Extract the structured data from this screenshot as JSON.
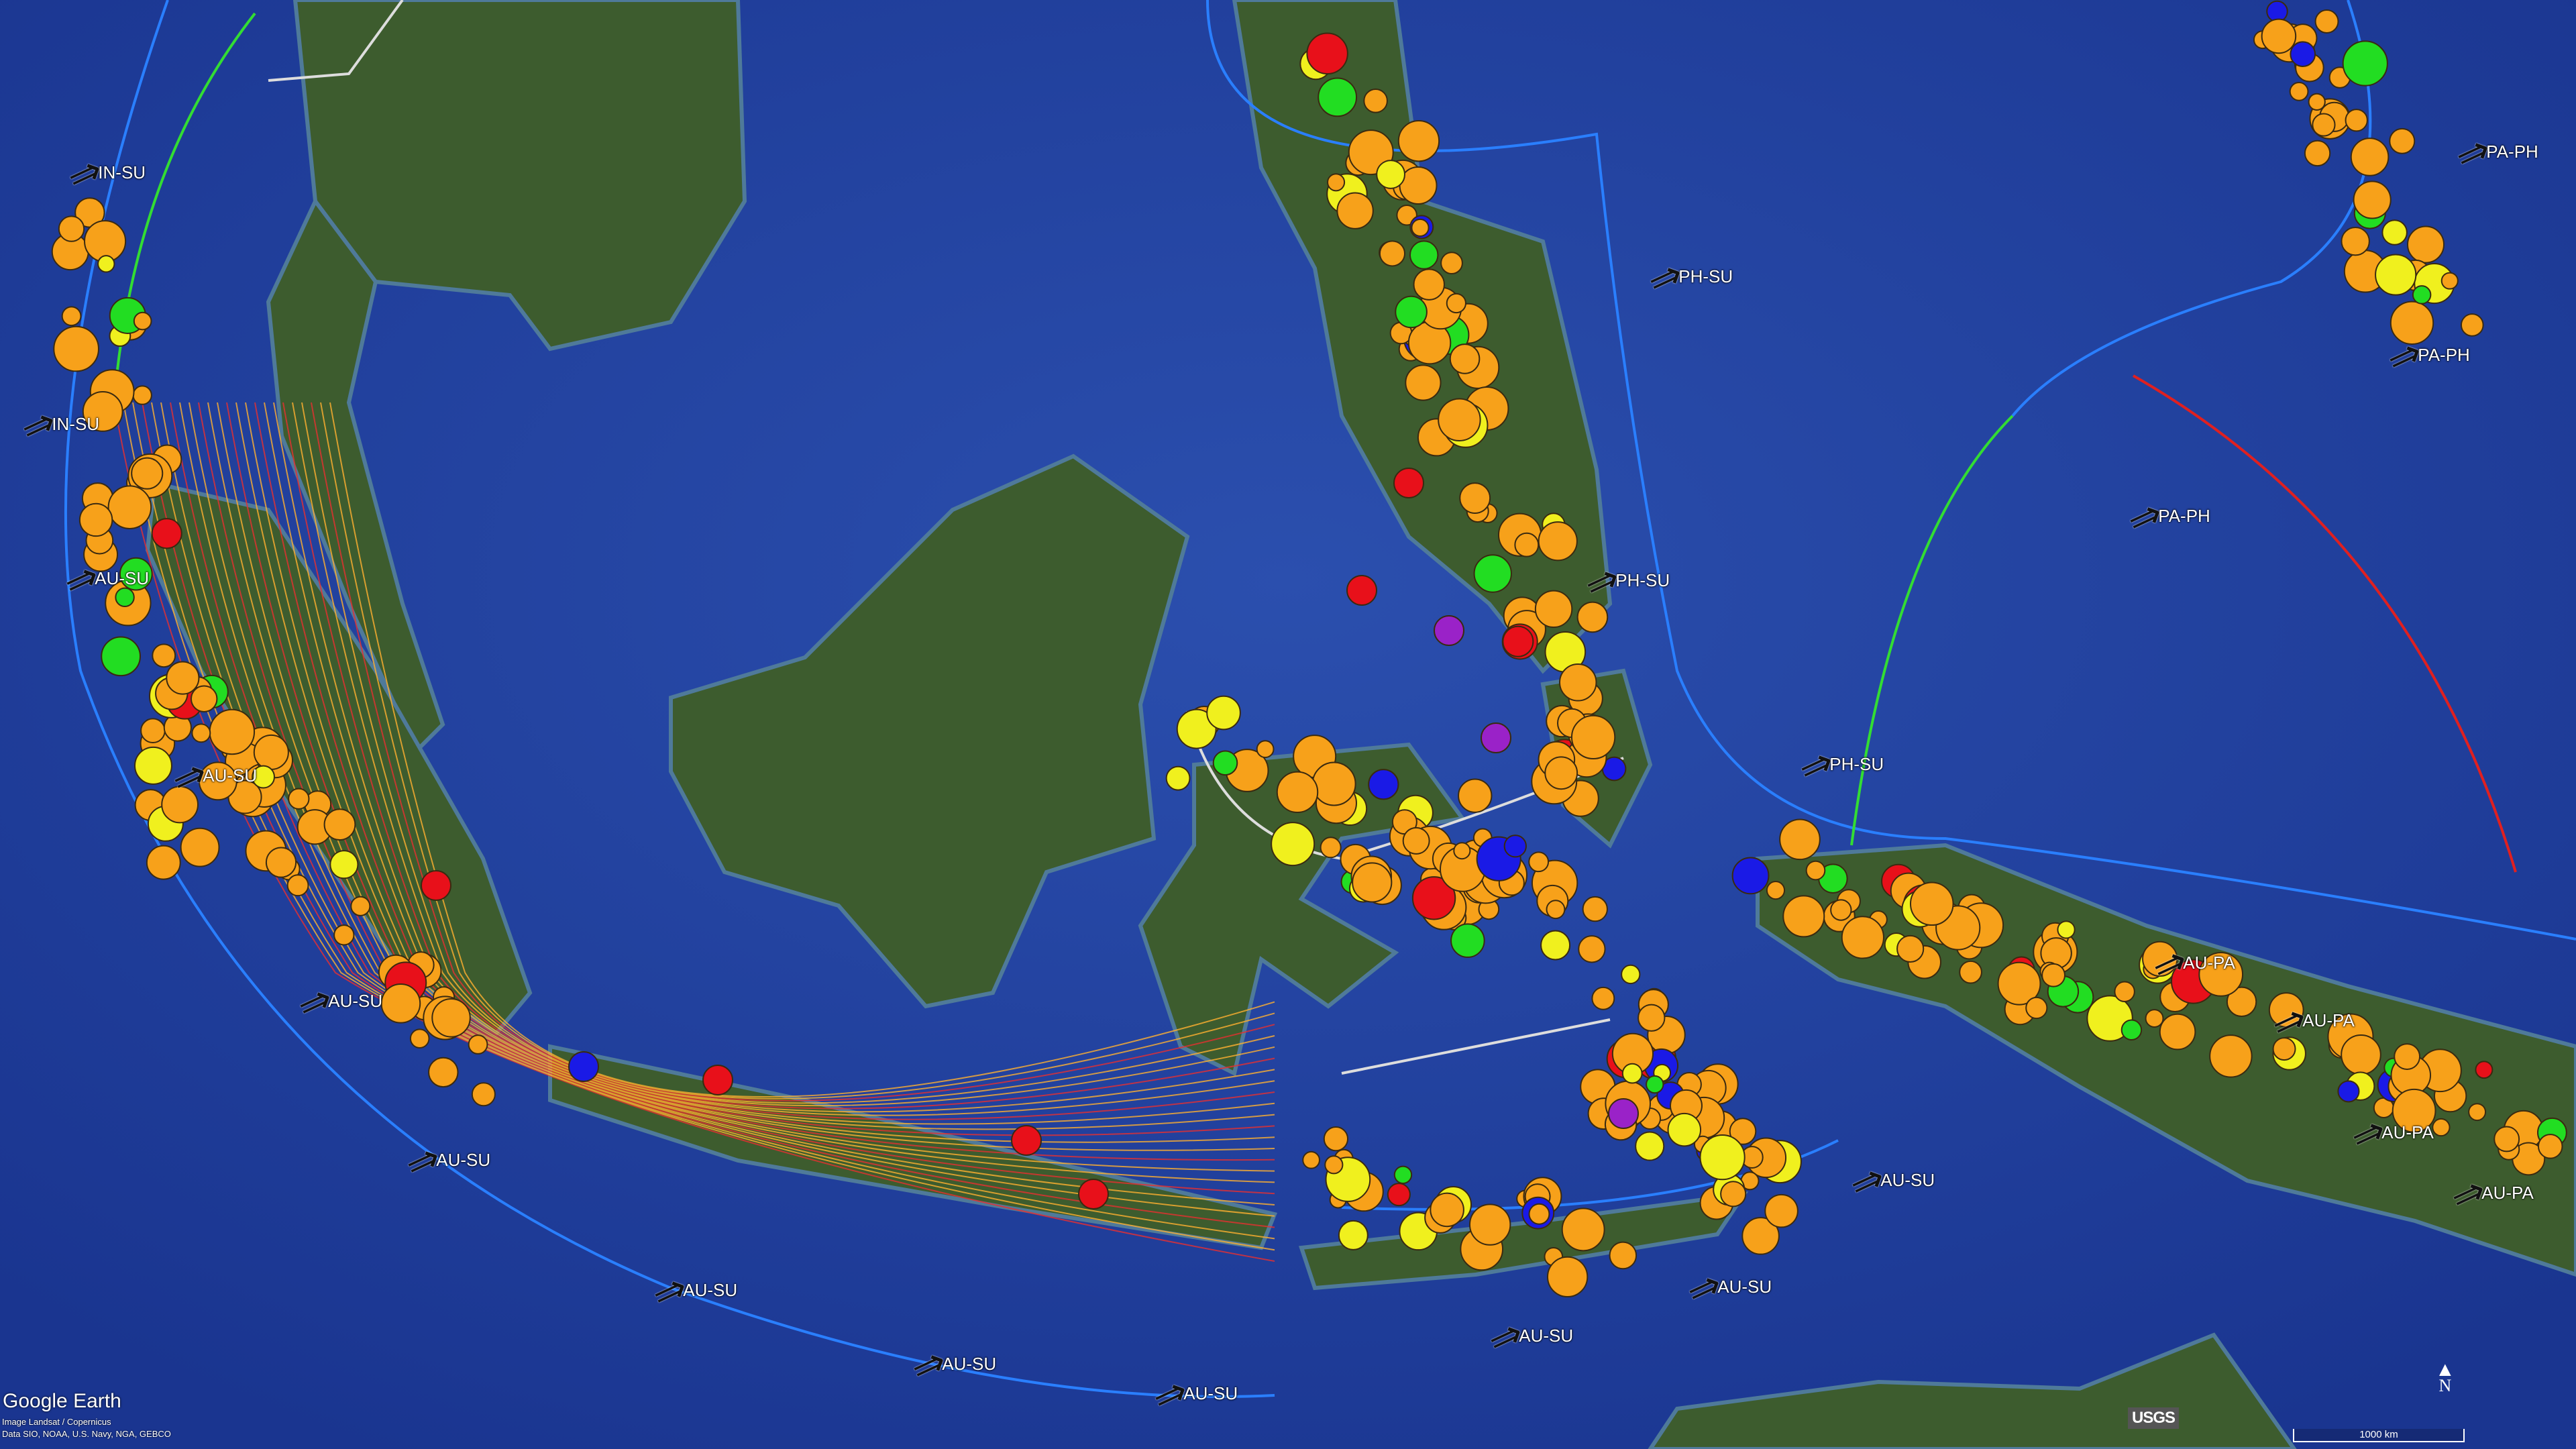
{
  "branding": {
    "logo": "Google Earth",
    "imagery_credit": "Image Landsat / Copernicus",
    "data_credit": "Data SIO, NOAA, U.S. Navy, NGA, GEBCO",
    "usgs_logo": "USGS"
  },
  "scale_bar": {
    "label": "1000 km"
  },
  "compass": {
    "label": "N",
    "icon": "north-arrow-icon"
  },
  "plate_labels": [
    "IN-SU",
    "IN-SU",
    "AU-SU",
    "AU-SU",
    "AU-SU",
    "AU-SU",
    "AU-SU",
    "AU-SU",
    "AU-SU",
    "AU-SU",
    "AU-SU",
    "AU-SU",
    "PH-SU",
    "PH-SU",
    "PH-SU",
    "PA-PH",
    "PA-PH",
    "PA-PH",
    "AU-PA",
    "AU-PA",
    "AU-PA",
    "AU-PA"
  ],
  "colors": {
    "ocean": "#1f3f9a",
    "land": "#3c5a2c",
    "quake_orange": "#f7a11a",
    "quake_yellow": "#f0f01e",
    "quake_green": "#22dd22",
    "quake_blue": "#1a1ae6",
    "quake_red": "#e8101a",
    "quake_purple": "#9a22c8",
    "plate_boundary": "#2a7fff",
    "contour": "#ff7a30"
  }
}
